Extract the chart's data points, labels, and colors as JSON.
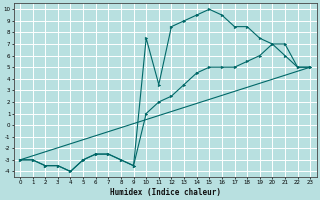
{
  "xlabel": "Humidex (Indice chaleur)",
  "background_color": "#b8e0e0",
  "grid_color": "#ffffff",
  "line_color": "#006868",
  "xlim": [
    -0.5,
    23.5
  ],
  "ylim": [
    -4.5,
    10.5
  ],
  "xticks": [
    0,
    1,
    2,
    3,
    4,
    5,
    6,
    7,
    8,
    9,
    10,
    11,
    12,
    13,
    14,
    15,
    16,
    17,
    18,
    19,
    20,
    21,
    22,
    23
  ],
  "yticks": [
    -4,
    -3,
    -2,
    -1,
    0,
    1,
    2,
    3,
    4,
    5,
    6,
    7,
    8,
    9,
    10
  ],
  "line1_x": [
    0,
    1,
    2,
    3,
    4,
    5,
    6,
    7,
    8,
    9,
    10,
    11,
    12,
    13,
    14,
    15,
    16,
    17,
    18,
    19,
    20,
    21,
    22,
    23
  ],
  "line1_y": [
    -3,
    -3,
    -3.5,
    -3.5,
    -4,
    -3,
    -2.5,
    -2.5,
    -3,
    -3.5,
    7.5,
    3.5,
    8.5,
    9,
    9.5,
    10,
    9.5,
    8.5,
    8.5,
    7.5,
    7,
    6,
    5,
    5
  ],
  "line2_x": [
    0,
    1,
    2,
    3,
    4,
    5,
    6,
    7,
    8,
    9,
    10,
    11,
    12,
    13,
    14,
    15,
    16,
    17,
    18,
    19,
    20,
    21,
    22,
    23
  ],
  "line2_y": [
    -3,
    -3,
    -3.5,
    -3.5,
    -4,
    -3,
    -2.5,
    -2.5,
    -3,
    -3.5,
    1,
    2,
    2.5,
    3.5,
    4.5,
    5,
    5,
    5,
    5.5,
    6,
    7,
    7,
    5,
    5
  ],
  "line3_x": [
    0,
    23
  ],
  "line3_y": [
    -3,
    5
  ]
}
